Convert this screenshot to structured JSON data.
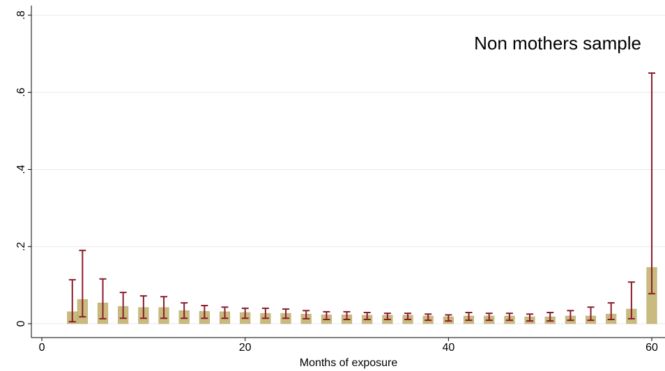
{
  "chart_data": {
    "type": "bar",
    "annotation": "Non mothers sample",
    "x_label": "Months of exposure",
    "x": [
      3,
      4,
      6,
      8,
      10,
      12,
      14,
      16,
      18,
      20,
      22,
      24,
      26,
      28,
      30,
      32,
      34,
      36,
      38,
      40,
      42,
      44,
      46,
      48,
      50,
      52,
      54,
      56,
      58,
      60
    ],
    "values": [
      0.031,
      0.063,
      0.054,
      0.045,
      0.042,
      0.042,
      0.034,
      0.032,
      0.031,
      0.029,
      0.027,
      0.027,
      0.025,
      0.023,
      0.023,
      0.022,
      0.022,
      0.022,
      0.02,
      0.018,
      0.02,
      0.02,
      0.02,
      0.018,
      0.018,
      0.02,
      0.02,
      0.025,
      0.038,
      0.146
    ],
    "ci_low": [
      0.005,
      0.018,
      0.013,
      0.014,
      0.014,
      0.014,
      0.014,
      0.014,
      0.014,
      0.014,
      0.014,
      0.014,
      0.013,
      0.011,
      0.011,
      0.011,
      0.011,
      0.011,
      0.009,
      0.007,
      0.009,
      0.009,
      0.009,
      0.007,
      0.007,
      0.009,
      0.009,
      0.011,
      0.013,
      0.078
    ],
    "ci_high": [
      0.114,
      0.19,
      0.116,
      0.081,
      0.072,
      0.07,
      0.054,
      0.047,
      0.043,
      0.04,
      0.04,
      0.038,
      0.034,
      0.031,
      0.031,
      0.029,
      0.027,
      0.027,
      0.025,
      0.023,
      0.029,
      0.027,
      0.027,
      0.025,
      0.029,
      0.034,
      0.043,
      0.054,
      0.108,
      0.65
    ],
    "color": "#c9ba7e",
    "error_color": "#8b1c2c",
    "xlim": [
      -1.03,
      61.3
    ],
    "ylim": [
      -0.036,
      0.825
    ],
    "xticks": [
      0,
      20,
      40,
      60
    ],
    "yticks": [
      0,
      {
        "value": 0.2,
        "label": ".2"
      },
      {
        "value": 0.4,
        "label": ".4"
      },
      {
        "value": 0.6,
        "label": ".6"
      },
      {
        "value": 0.8,
        "label": ".8"
      }
    ],
    "grid": true
  }
}
